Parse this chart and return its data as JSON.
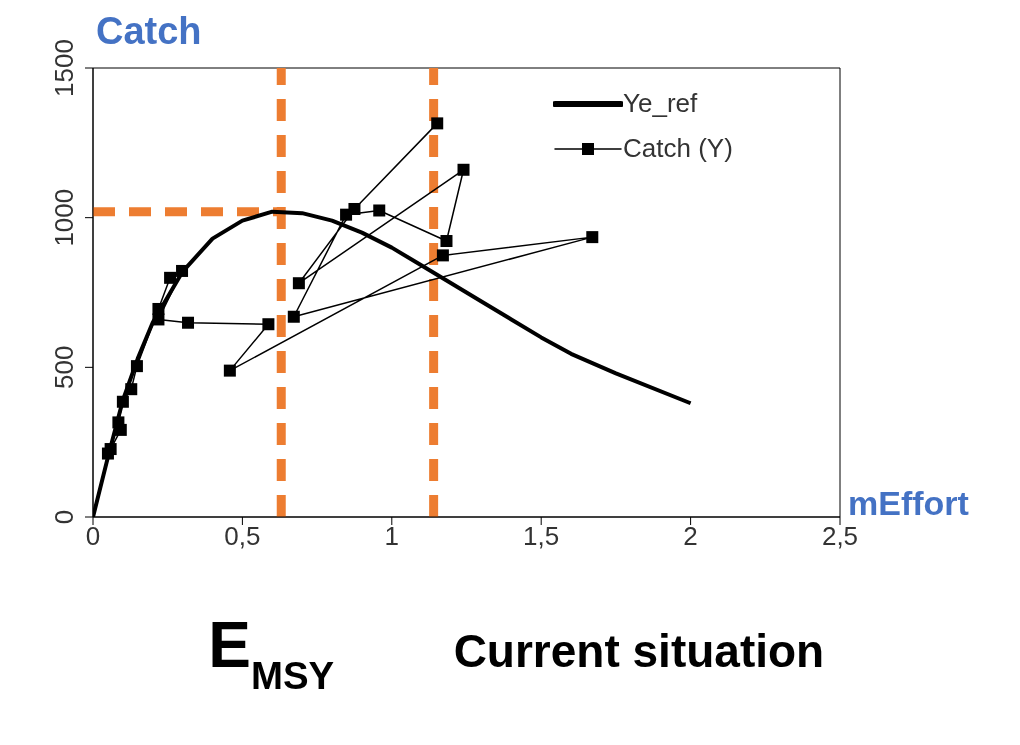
{
  "chart_data": {
    "type": "line",
    "xlabel": "mEffort",
    "ylabel": "Catch",
    "xlim": [
      0,
      2.5
    ],
    "ylim": [
      0,
      1500
    ],
    "xticks": [
      0,
      {
        "value": 0.5,
        "label": "0,5"
      },
      1,
      {
        "value": 1.5,
        "label": "1,5"
      },
      2,
      {
        "value": 2.5,
        "label": "2,5"
      }
    ],
    "yticks": [
      0,
      500,
      1000,
      1500
    ],
    "series": [
      {
        "name": "Ye_ref",
        "color": "#000000",
        "marker": "none",
        "x": [
          0,
          0.05,
          0.1,
          0.15,
          0.2,
          0.3,
          0.4,
          0.5,
          0.6,
          0.7,
          0.8,
          0.9,
          1.0,
          1.1,
          1.2,
          1.3,
          1.4,
          1.5,
          1.6,
          1.75,
          2.0
        ],
        "values": [
          0,
          200,
          390,
          530,
          650,
          820,
          930,
          990,
          1020,
          1015,
          990,
          950,
          900,
          840,
          780,
          720,
          660,
          600,
          545,
          480,
          380
        ]
      },
      {
        "name": "Catch (Y)",
        "color": "#000000",
        "marker": "square",
        "x": [
          0.05,
          0.059,
          0.093,
          0.085,
          0.1,
          0.128,
          0.147,
          0.219,
          0.258,
          0.298,
          0.219,
          0.318,
          0.587,
          0.458,
          1.171,
          1.671,
          0.672,
          0.847,
          0.958,
          1.183,
          1.24,
          0.689,
          0.875,
          1.152
        ],
        "values": [
          212,
          227,
          291,
          316,
          385,
          427,
          504,
          695,
          799,
          822,
          660,
          649,
          644,
          489,
          874,
          935,
          669,
          1010,
          1024,
          922,
          1160,
          781,
          1029,
          1315
        ]
      }
    ],
    "ref_lines": [
      {
        "axis": "y",
        "value": 1020,
        "color": "#ed7d31",
        "line_style": "dashed"
      },
      {
        "axis": "x",
        "value": 0.63,
        "label": "E$_{MSY}$",
        "color": "#ed7d31",
        "line_style": "dashed"
      },
      {
        "axis": "x",
        "value": 1.14,
        "label": "Current situation",
        "color": "#ed7d31",
        "line_style": "dashed"
      }
    ],
    "legend": "top right",
    "grid": false
  }
}
